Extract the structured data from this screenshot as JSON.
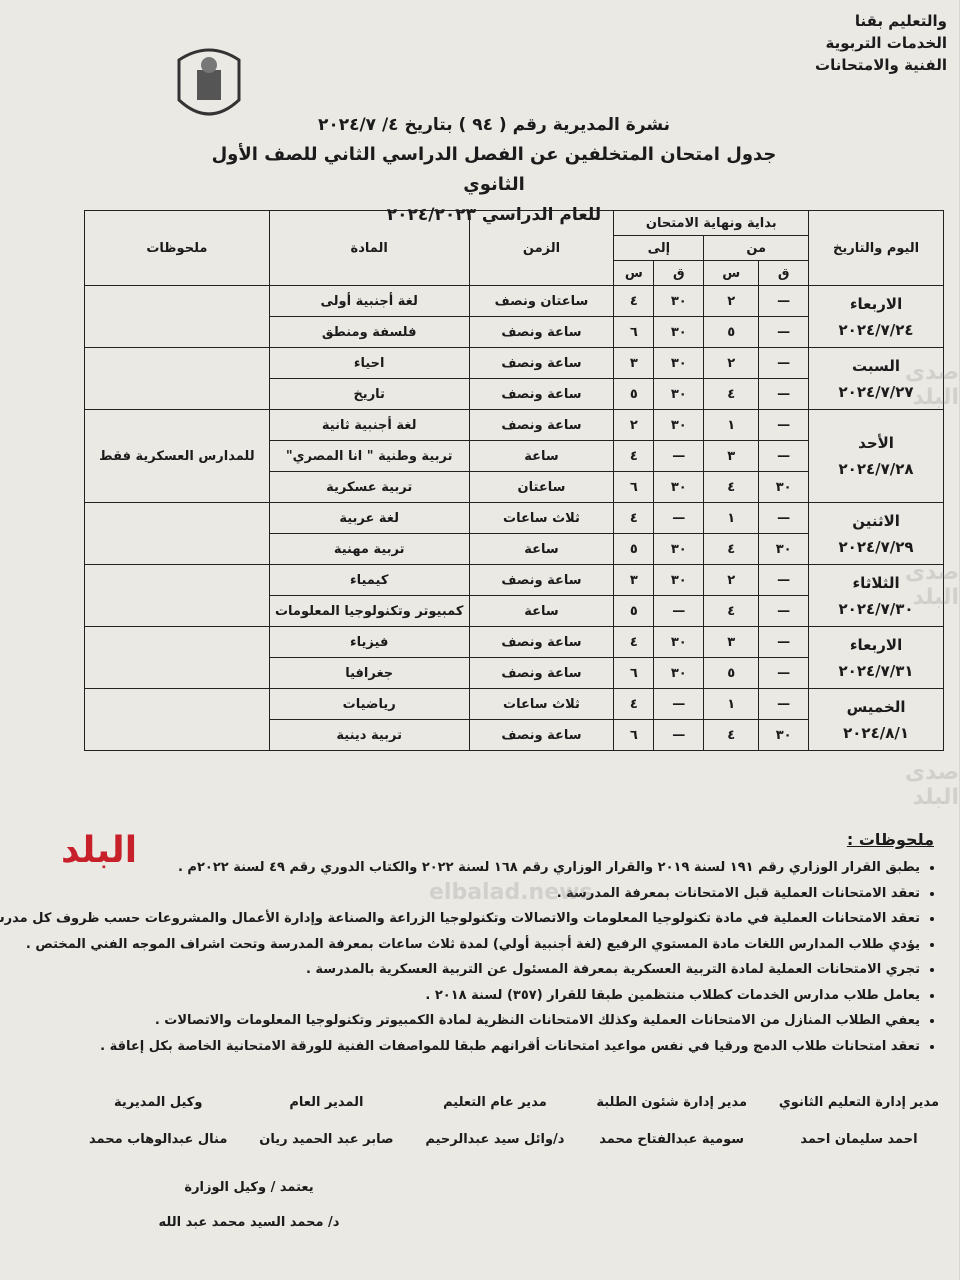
{
  "header": {
    "ministry_lines": [
      "والتعليم بقنا",
      "الخدمات التربوية",
      "الفنية والامتحانات"
    ],
    "bulletin": "نشرة المديرية رقم ( ٩٤ ) بتاريخ ٤/ ٢٠٢٤/٧",
    "title": "جدول امتحان المتخلفين عن الفصل الدراسي الثاني للصف الأول الثانوي",
    "year": "للعام الدراسي ٢٠٢٤/٢٠٢٣"
  },
  "table": {
    "headers": {
      "day": "اليوم والتاريخ",
      "period": "بداية ونهاية الامتحان",
      "from": "من",
      "to": "إلى",
      "minute": "ق",
      "hour": "س",
      "duration": "الزمن",
      "subject": "المادة",
      "notes": "ملحوظات"
    },
    "days": [
      {
        "day": "الاربعاء",
        "date": "٢٠٢٤/٧/٢٤",
        "rows": [
          [
            "—",
            "٢",
            "٣٠",
            "٤",
            "ساعتان ونصف",
            "لغة أجنبية أولى"
          ],
          [
            "—",
            "٥",
            "٣٠",
            "٦",
            "ساعة ونصف",
            "فلسفة ومنطق"
          ]
        ]
      },
      {
        "day": "السبت",
        "date": "٢٠٢٤/٧/٢٧",
        "rows": [
          [
            "—",
            "٢",
            "٣٠",
            "٣",
            "ساعة ونصف",
            "احياء"
          ],
          [
            "—",
            "٤",
            "٣٠",
            "٥",
            "ساعة ونصف",
            "تاريخ"
          ]
        ]
      },
      {
        "day": "الأحد",
        "date": "٢٠٢٤/٧/٢٨",
        "note": "للمدارس العسكرية فقط",
        "rows": [
          [
            "—",
            "١",
            "٣٠",
            "٢",
            "ساعة ونصف",
            "لغة أجنبية ثانية"
          ],
          [
            "—",
            "٣",
            "—",
            "٤",
            "ساعة",
            "تربية وطنية \" انا المصري\""
          ],
          [
            "٣٠",
            "٤",
            "٣٠",
            "٦",
            "ساعتان",
            "تربية عسكرية"
          ]
        ]
      },
      {
        "day": "الاثنين",
        "date": "٢٠٢٤/٧/٢٩",
        "rows": [
          [
            "—",
            "١",
            "—",
            "٤",
            "ثلاث ساعات",
            "لغة عربية"
          ],
          [
            "٣٠",
            "٤",
            "٣٠",
            "٥",
            "ساعة",
            "تربية مهنية"
          ]
        ]
      },
      {
        "day": "الثلاثاء",
        "date": "٢٠٢٤/٧/٣٠",
        "rows": [
          [
            "—",
            "٢",
            "٣٠",
            "٣",
            "ساعة ونصف",
            "كيمياء"
          ],
          [
            "—",
            "٤",
            "—",
            "٥",
            "ساعة",
            "كمبيوتر وتكنولوجيا المعلومات"
          ]
        ]
      },
      {
        "day": "الاربعاء",
        "date": "٢٠٢٤/٧/٣١",
        "rows": [
          [
            "—",
            "٣",
            "٣٠",
            "٤",
            "ساعة ونصف",
            "فيزياء"
          ],
          [
            "—",
            "٥",
            "٣٠",
            "٦",
            "ساعة ونصف",
            "جغرافيا"
          ]
        ]
      },
      {
        "day": "الخميس",
        "date": "٢٠٢٤/٨/١",
        "rows": [
          [
            "—",
            "١",
            "—",
            "٤",
            "ثلاث ساعات",
            "رياضيات"
          ],
          [
            "٣٠",
            "٤",
            "—",
            "٦",
            "ساعة ونصف",
            "تربية دينية"
          ]
        ]
      }
    ]
  },
  "notes": {
    "heading": "ملحوظات :",
    "items": [
      "يطبق القرار الوزاري رقم ١٩١ لسنة ٢٠١٩ والقرار الوزاري رقم ١٦٨ لسنة ٢٠٢٢ والكتاب الدوري رقم ٤٩ لسنة ٢٠٢٢م .",
      "تعقد الامتحانات العملية قبل الامتحانات بمعرفة المدرسة .",
      "تعقد الامتحانات العملية في مادة تكنولوجيا المعلومات والاتصالات وتكنولوجيا الزراعة والصناعة وإدارة الأعمال والمشروعات حسب ظروف كل مدرسة",
      "يؤدي طلاب المدارس اللغات مادة المستوي الرفيع (لغة أجنبية أولي) لمدة ثلاث ساعات بمعرفة المدرسة وتحت اشراف الموجه الفني المختص .",
      "تجري الامتحانات العملية لمادة التربية العسكرية بمعرفة المسئول عن التربية العسكرية بالمدرسة .",
      "يعامل طلاب مدارس الخدمات كطلاب منتظمين طبقا للقرار (٣٥٧) لسنة ٢٠١٨ .",
      "يعفي الطلاب المنازل من الامتحانات العملية وكذلك الامتحانات النظرية لمادة الكمبيوتر وتكنولوجيا المعلومات والاتصالات .",
      "تعقد امتحانات طلاب الدمج ورقيا في نفس مواعيد امتحانات أقرانهم طبقا للمواصفات الفنية للورقة الامتحانية الخاصة بكل إعاقة ."
    ]
  },
  "signatures": [
    {
      "title": "مدير إدارة التعليم الثانوي",
      "name": "احمد سليمان احمد"
    },
    {
      "title": "مدير إدارة شئون الطلبة",
      "name": "سومية عبدالفتاح محمد"
    },
    {
      "title": "مدير عام التعليم",
      "name": "د/وائل سيد عبدالرحيم"
    },
    {
      "title": "المدير العام",
      "name": "صابر عبد الحميد ريان"
    },
    {
      "title": "وكيل المديرية",
      "name": "منال عبدالوهاب محمد"
    }
  ],
  "approval": {
    "title": "يعتمد / وكيل الوزارة",
    "name": "د/ محمد السيد محمد عبد الله"
  },
  "watermark": {
    "logo": "البلد",
    "text": "صدى البلد",
    "site": "elbalad.news"
  }
}
